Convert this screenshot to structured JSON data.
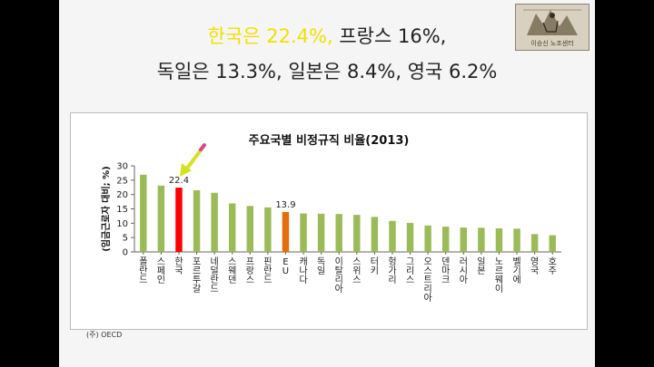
{
  "headline": {
    "line1_highlight": "한국은 22.4%,",
    "line1_rest": " 프랑스 16%,",
    "line2": "독일은 13.3%, 일본은 8.4%, 영국 6.2%"
  },
  "logo": {
    "label": "이승신 노조센터"
  },
  "colors": {
    "default_bar": "#9bbb59",
    "korea_bar": "#ff0000",
    "eu_bar": "#e46c0a",
    "highlight_text": "#f0e000",
    "arrow": "#d4e020"
  },
  "chart_data": {
    "type": "bar",
    "title": "주요국별 비정규직 비율(2013)",
    "ylabel": "(임금근로자 대비; %)",
    "ylim": [
      0,
      30
    ],
    "yticks": [
      0,
      5,
      10,
      15,
      20,
      25,
      30
    ],
    "categories": [
      "폴란드",
      "스페인",
      "한국",
      "포르투갈",
      "네덜란드",
      "스웨덴",
      "프랑스",
      "핀란드",
      "EU",
      "캐나다",
      "독일",
      "이탈리아",
      "스위스",
      "터키",
      "헝가리",
      "그리스",
      "오스트리아",
      "덴마크",
      "러시아",
      "일본",
      "노르웨이",
      "벨기에",
      "영국",
      "호주"
    ],
    "values": [
      26.9,
      23.1,
      22.4,
      21.5,
      20.6,
      16.9,
      16.0,
      15.5,
      13.9,
      13.4,
      13.3,
      13.2,
      12.9,
      12.2,
      10.8,
      10.1,
      9.2,
      8.8,
      8.5,
      8.4,
      8.2,
      8.1,
      6.2,
      5.8
    ],
    "bar_colors": [
      "default",
      "default",
      "korea",
      "default",
      "default",
      "default",
      "default",
      "default",
      "eu",
      "default",
      "default",
      "default",
      "default",
      "default",
      "default",
      "default",
      "default",
      "default",
      "default",
      "default",
      "default",
      "default",
      "default",
      "default"
    ],
    "data_labels": [
      {
        "category": "한국",
        "text": "22.4"
      },
      {
        "category": "EU",
        "text": "13.9"
      }
    ],
    "grid": false,
    "legend": "none"
  },
  "source": "(주) OECD"
}
